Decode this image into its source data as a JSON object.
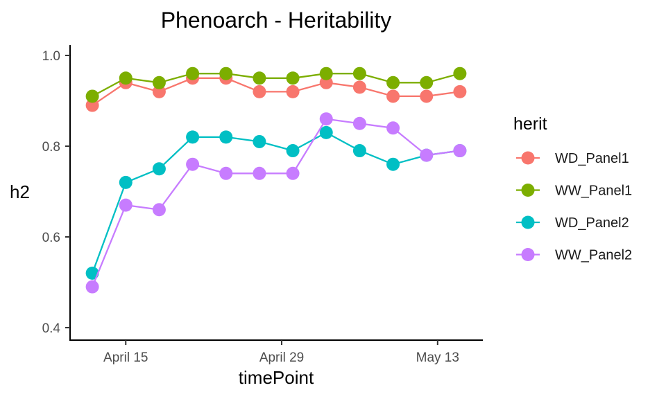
{
  "chart_data": {
    "type": "line",
    "title": "Phenoarch - Heritability",
    "xlabel": "timePoint",
    "ylabel": "h2",
    "x_ticks": [
      "April 15",
      "April 29",
      "May 13"
    ],
    "y_ticks": [
      "0.4",
      "0.6",
      "0.8",
      "1.0"
    ],
    "ylim": [
      0.4,
      1.0
    ],
    "x": [
      "2018-04-12",
      "2018-04-15",
      "2018-04-18",
      "2018-04-21",
      "2018-04-24",
      "2018-04-27",
      "2018-04-30",
      "2018-05-03",
      "2018-05-06",
      "2018-05-09",
      "2018-05-12",
      "2018-05-15"
    ],
    "legend_title": "herit",
    "legend_position": "right",
    "grid": false,
    "series": [
      {
        "name": "WD_Panel1",
        "color": "#F8766D",
        "values": [
          0.89,
          0.94,
          0.92,
          0.95,
          0.95,
          0.92,
          0.92,
          0.94,
          0.93,
          0.91,
          0.91,
          0.92
        ]
      },
      {
        "name": "WW_Panel1",
        "color": "#7CAE00",
        "values": [
          0.91,
          0.95,
          0.94,
          0.96,
          0.96,
          0.95,
          0.95,
          0.96,
          0.96,
          0.94,
          0.94,
          0.96
        ]
      },
      {
        "name": "WD_Panel2",
        "color": "#00BFC4",
        "values": [
          0.52,
          0.72,
          0.75,
          0.82,
          0.82,
          0.81,
          0.79,
          0.83,
          0.79,
          0.76,
          0.78,
          0.79
        ]
      },
      {
        "name": "WW_Panel2",
        "color": "#C77CFF",
        "values": [
          0.49,
          0.67,
          0.66,
          0.76,
          0.74,
          0.74,
          0.74,
          0.86,
          0.85,
          0.84,
          0.78,
          0.79
        ]
      }
    ]
  }
}
